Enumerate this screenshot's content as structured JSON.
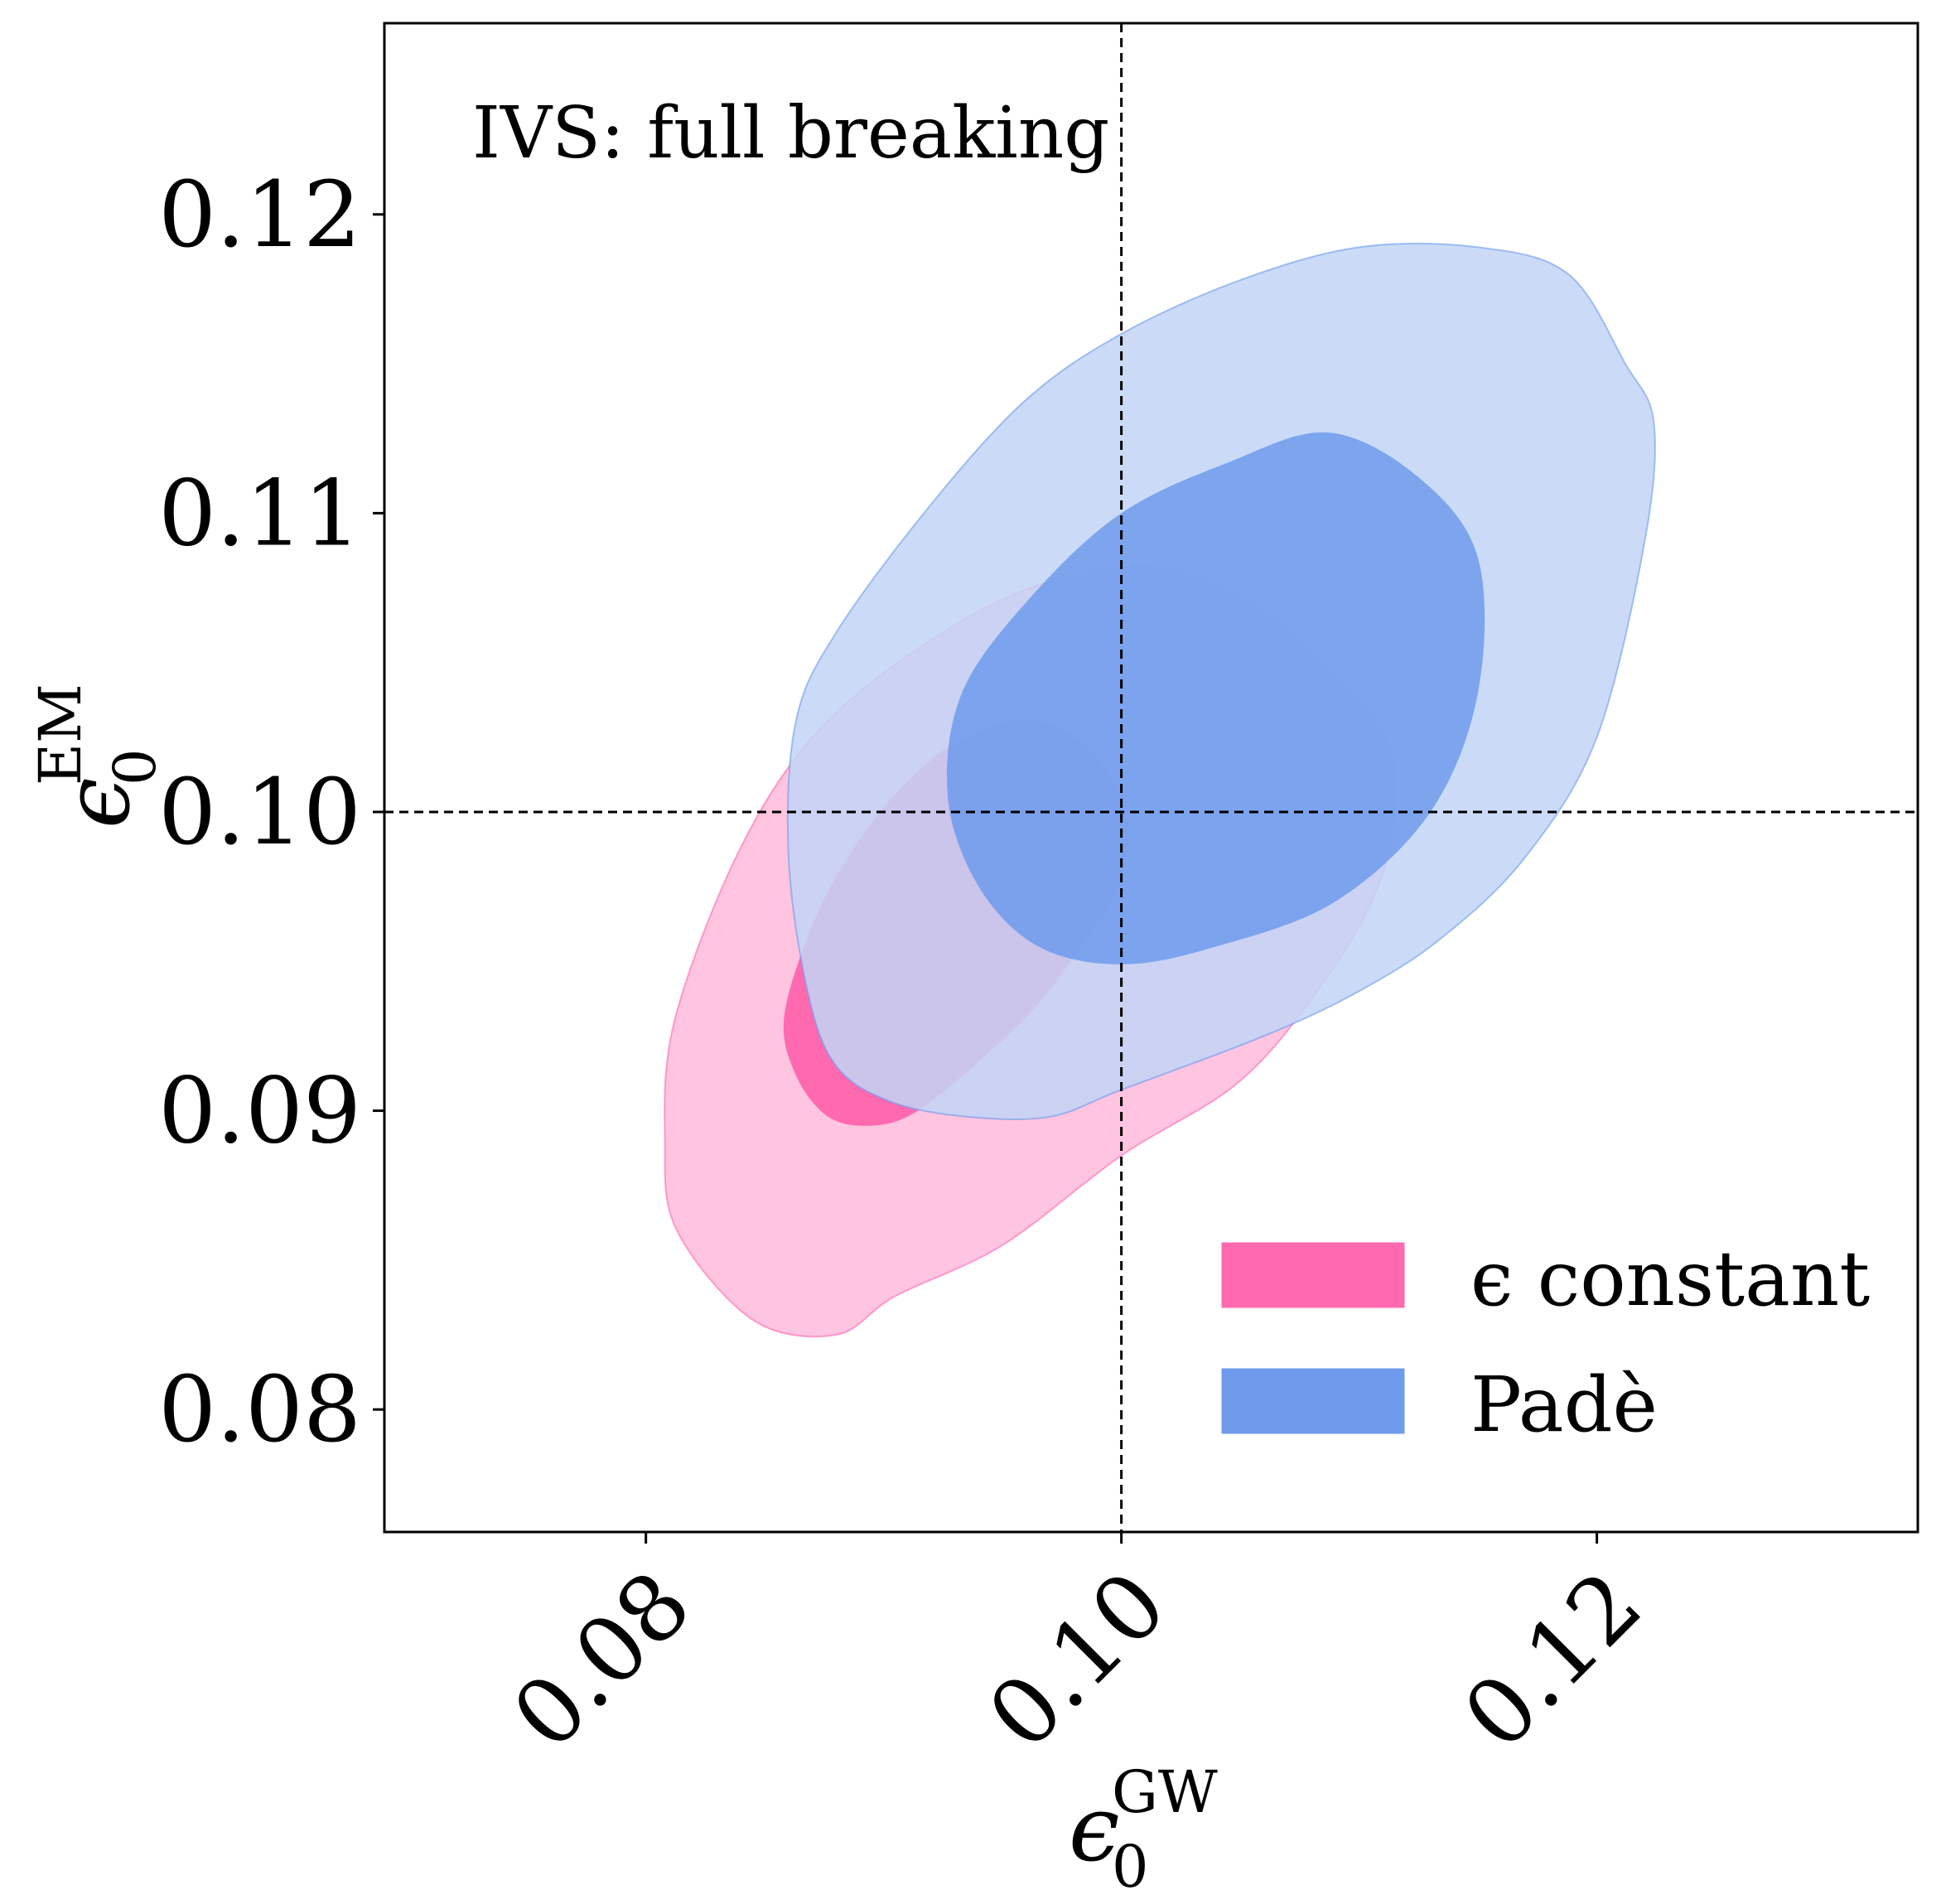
{
  "chart_data": {
    "type": "contour",
    "annotation": "IVS: full breaking",
    "xlabel": {
      "symbol": "ϵ",
      "subscript": "0",
      "superscript": "GW"
    },
    "ylabel": {
      "symbol": "ϵ",
      "subscript": "0",
      "superscript": "EM"
    },
    "xlim": [
      0.069,
      0.1335
    ],
    "ylim": [
      0.0759,
      0.1264
    ],
    "xticks": [
      0.08,
      0.1,
      0.12
    ],
    "xtick_labels": [
      "0.08",
      "0.10",
      "0.12"
    ],
    "yticks": [
      0.08,
      0.09,
      0.1,
      0.11,
      0.12
    ],
    "ytick_labels": [
      "0.08",
      "0.09",
      "0.10",
      "0.11",
      "0.12"
    ],
    "reference_lines": {
      "x": 0.1,
      "y": 0.1,
      "style": "dashed"
    },
    "legend_position": "lower-right",
    "series": [
      {
        "name": "ϵ constant",
        "color_inner": "#ff69b0",
        "color_outer": "#ffbedd",
        "inner_contour": [
          [
            0.0963,
            0.1031
          ],
          [
            0.099,
            0.1018
          ],
          [
            0.1003,
            0.0996
          ],
          [
            0.0998,
            0.0974
          ],
          [
            0.0983,
            0.0955
          ],
          [
            0.0963,
            0.0934
          ],
          [
            0.0935,
            0.0913
          ],
          [
            0.091,
            0.0898
          ],
          [
            0.089,
            0.0895
          ],
          [
            0.0875,
            0.0899
          ],
          [
            0.0863,
            0.0912
          ],
          [
            0.0858,
            0.093
          ],
          [
            0.0867,
            0.0956
          ],
          [
            0.0882,
            0.0981
          ],
          [
            0.0905,
            0.1006
          ],
          [
            0.0932,
            0.1024
          ]
        ],
        "outer_contour": [
          [
            0.1015,
            0.1082
          ],
          [
            0.1055,
            0.107
          ],
          [
            0.109,
            0.1046
          ],
          [
            0.1111,
            0.1025
          ],
          [
            0.1115,
            0.1004
          ],
          [
            0.1108,
            0.0975
          ],
          [
            0.1085,
            0.0943
          ],
          [
            0.105,
            0.091
          ],
          [
            0.1,
            0.0885
          ],
          [
            0.095,
            0.0855
          ],
          [
            0.0905,
            0.0838
          ],
          [
            0.088,
            0.0825
          ],
          [
            0.0845,
            0.083
          ],
          [
            0.0813,
            0.086
          ],
          [
            0.0808,
            0.089
          ],
          [
            0.0812,
            0.093
          ],
          [
            0.0838,
            0.0985
          ],
          [
            0.087,
            0.1025
          ],
          [
            0.0915,
            0.1055
          ],
          [
            0.0965,
            0.1076
          ]
        ],
        "outer_alpha": 0.9
      },
      {
        "name": "Padè",
        "color_inner": "#6e9bec",
        "color_outer": "#c2d5f6",
        "inner_contour": [
          [
            0.1087,
            0.1127
          ],
          [
            0.1125,
            0.1112
          ],
          [
            0.115,
            0.1085
          ],
          [
            0.115,
            0.104
          ],
          [
            0.113,
            0.1
          ],
          [
            0.109,
            0.097
          ],
          [
            0.104,
            0.0955
          ],
          [
            0.1,
            0.0949
          ],
          [
            0.0965,
            0.0955
          ],
          [
            0.094,
            0.0975
          ],
          [
            0.0927,
            0.1005
          ],
          [
            0.0933,
            0.104
          ],
          [
            0.0962,
            0.1072
          ],
          [
            0.1,
            0.11
          ],
          [
            0.1045,
            0.1117
          ]
        ],
        "outer_contour": [
          [
            0.115,
            0.1189
          ],
          [
            0.1188,
            0.118
          ],
          [
            0.1212,
            0.115
          ],
          [
            0.1224,
            0.113
          ],
          [
            0.122,
            0.109
          ],
          [
            0.12,
            0.1025
          ],
          [
            0.117,
            0.0985
          ],
          [
            0.1135,
            0.0958
          ],
          [
            0.11,
            0.094
          ],
          [
            0.106,
            0.0925
          ],
          [
            0.1,
            0.0907
          ],
          [
            0.097,
            0.0898
          ],
          [
            0.0935,
            0.0898
          ],
          [
            0.0903,
            0.0903
          ],
          [
            0.088,
            0.0915
          ],
          [
            0.0868,
            0.094
          ],
          [
            0.086,
            0.0985
          ],
          [
            0.0863,
            0.103
          ],
          [
            0.088,
            0.106
          ],
          [
            0.092,
            0.1103
          ],
          [
            0.096,
            0.1138
          ],
          [
            0.1,
            0.116
          ],
          [
            0.105,
            0.1178
          ],
          [
            0.11,
            0.1189
          ]
        ],
        "outer_alpha": 0.85
      }
    ]
  }
}
